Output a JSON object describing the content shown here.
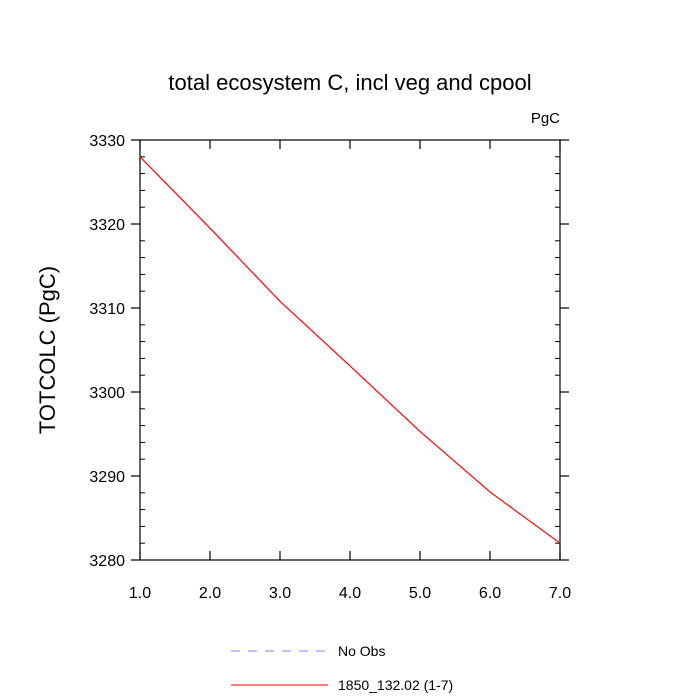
{
  "chart_data": {
    "type": "line",
    "title": "total ecosystem C, incl veg and cpool",
    "units": "PgC",
    "xlabel": "",
    "ylabel": "TOTCOLC  (PgC)",
    "xlim": [
      1.0,
      7.0
    ],
    "ylim": [
      3280,
      3330
    ],
    "xticks": [
      1.0,
      2.0,
      3.0,
      4.0,
      5.0,
      6.0,
      7.0
    ],
    "xtick_labels": [
      "1.0",
      "2.0",
      "3.0",
      "4.0",
      "5.0",
      "6.0",
      "7.0"
    ],
    "yticks": [
      3280,
      3290,
      3300,
      3310,
      3320,
      3330
    ],
    "ytick_labels": [
      "3280",
      "3290",
      "3300",
      "3310",
      "3320",
      "3330"
    ],
    "grid": false,
    "legend_position": "bottom",
    "series": [
      {
        "name": "1850_132.02 (1-7)",
        "color": "#ff0000",
        "style": "solid",
        "x": [
          1,
          2,
          3,
          4,
          5,
          6,
          7
        ],
        "y": [
          3328,
          3319.5,
          3310.8,
          3303.1,
          3295.3,
          3288.1,
          3282
        ]
      }
    ],
    "legend": [
      {
        "label": "No Obs",
        "color": "#8080ff",
        "style": "dashed"
      },
      {
        "label": "1850_132.02 (1-7)",
        "color": "#ff0000",
        "style": "solid"
      }
    ]
  }
}
